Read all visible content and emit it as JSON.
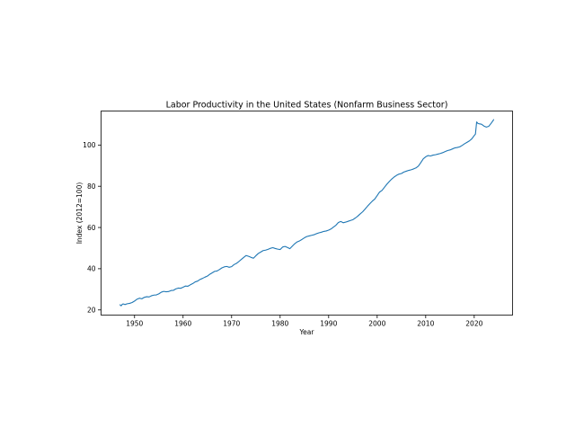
{
  "chart_data": {
    "type": "line",
    "title": "Labor Productivity in the United States (Nonfarm Business Sector)",
    "xlabel": "Year",
    "ylabel": "Index (2012=100)",
    "xlim": [
      1943.1,
      2027.9
    ],
    "ylim": [
      17.5,
      116.5
    ],
    "x_ticks": [
      1950,
      1960,
      1970,
      1980,
      1990,
      2000,
      2010,
      2020
    ],
    "y_ticks": [
      20,
      40,
      60,
      80,
      100
    ],
    "grid": false,
    "legend": "none",
    "line_color": "#1f77b4",
    "series": [
      {
        "x": [
          1947.0,
          1947.25,
          1947.5,
          1947.75,
          1948.0,
          1948.5,
          1949.0,
          1949.5,
          1950.0,
          1950.5,
          1951.0,
          1951.5,
          1952.0,
          1952.5,
          1953.0,
          1953.5,
          1954.0,
          1954.5,
          1955.0,
          1955.5,
          1956.0,
          1956.5,
          1957.0,
          1957.5,
          1958.0,
          1958.5,
          1959.0,
          1959.5,
          1960.0,
          1960.5,
          1961.0,
          1961.5,
          1962.0,
          1962.5,
          1963.0,
          1963.5,
          1964.0,
          1964.5,
          1965.0,
          1965.5,
          1966.0,
          1966.5,
          1967.0,
          1967.5,
          1968.0,
          1968.5,
          1969.0,
          1969.5,
          1970.0,
          1970.5,
          1971.0,
          1971.5,
          1972.0,
          1972.5,
          1973.0,
          1973.5,
          1974.0,
          1974.5,
          1975.0,
          1975.5,
          1976.0,
          1976.5,
          1977.0,
          1977.5,
          1978.0,
          1978.5,
          1979.0,
          1979.5,
          1980.0,
          1980.5,
          1981.0,
          1981.5,
          1982.0,
          1982.5,
          1983.0,
          1983.5,
          1984.0,
          1984.5,
          1985.0,
          1985.5,
          1986.0,
          1986.5,
          1987.0,
          1987.5,
          1988.0,
          1988.5,
          1989.0,
          1989.5,
          1990.0,
          1990.5,
          1991.0,
          1991.5,
          1992.0,
          1992.5,
          1993.0,
          1993.5,
          1994.0,
          1994.5,
          1995.0,
          1995.5,
          1996.0,
          1996.5,
          1997.0,
          1997.5,
          1998.0,
          1998.5,
          1999.0,
          1999.5,
          2000.0,
          2000.5,
          2001.0,
          2001.5,
          2002.0,
          2002.5,
          2003.0,
          2003.5,
          2004.0,
          2004.5,
          2005.0,
          2005.5,
          2006.0,
          2006.5,
          2007.0,
          2007.5,
          2008.0,
          2008.5,
          2009.0,
          2009.5,
          2010.0,
          2010.5,
          2011.0,
          2011.5,
          2012.0,
          2012.5,
          2013.0,
          2013.5,
          2014.0,
          2014.5,
          2015.0,
          2015.5,
          2016.0,
          2016.5,
          2017.0,
          2017.5,
          2018.0,
          2018.5,
          2019.0,
          2019.5,
          2020.0,
          2020.25,
          2020.5,
          2020.75,
          2021.0,
          2021.5,
          2022.0,
          2022.5,
          2023.0,
          2023.5,
          2024.0
        ],
        "y": [
          22.5,
          22.0,
          22.8,
          22.9,
          22.6,
          23.0,
          23.2,
          23.6,
          24.3,
          25.2,
          25.7,
          25.4,
          26.1,
          26.4,
          26.3,
          26.9,
          27.2,
          27.3,
          27.8,
          28.6,
          29.0,
          28.8,
          28.9,
          29.4,
          29.5,
          30.2,
          30.6,
          30.5,
          31.0,
          31.6,
          31.5,
          32.2,
          32.8,
          33.6,
          34.0,
          34.8,
          35.3,
          35.9,
          36.4,
          37.3,
          38.0,
          38.7,
          38.9,
          39.6,
          40.4,
          40.9,
          41.1,
          40.7,
          41.0,
          42.0,
          42.6,
          43.5,
          44.5,
          45.5,
          46.4,
          46.0,
          45.5,
          45.1,
          46.3,
          47.4,
          48.1,
          48.8,
          49.0,
          49.4,
          49.9,
          50.2,
          49.8,
          49.5,
          49.3,
          50.5,
          50.8,
          50.3,
          49.7,
          50.9,
          52.1,
          53.0,
          53.5,
          54.2,
          55.0,
          55.6,
          55.9,
          56.2,
          56.5,
          57.0,
          57.4,
          57.7,
          58.1,
          58.3,
          58.7,
          59.3,
          60.2,
          61.1,
          62.4,
          62.9,
          62.3,
          62.6,
          63.0,
          63.4,
          63.8,
          64.6,
          65.5,
          66.6,
          67.6,
          68.9,
          70.3,
          71.6,
          72.8,
          73.8,
          75.5,
          77.2,
          78.0,
          79.5,
          81.0,
          82.3,
          83.5,
          84.5,
          85.3,
          85.9,
          86.2,
          86.9,
          87.3,
          87.7,
          88.0,
          88.4,
          88.9,
          89.8,
          91.5,
          93.3,
          94.3,
          94.9,
          94.7,
          95.1,
          95.3,
          95.6,
          95.9,
          96.3,
          96.8,
          97.3,
          97.6,
          98.1,
          98.6,
          98.8,
          99.1,
          99.8,
          100.6,
          101.3,
          102.0,
          103.0,
          104.6,
          105.3,
          111.2,
          110.5,
          110.3,
          110.1,
          109.2,
          108.7,
          109.1,
          110.6,
          112.3
        ]
      }
    ]
  }
}
